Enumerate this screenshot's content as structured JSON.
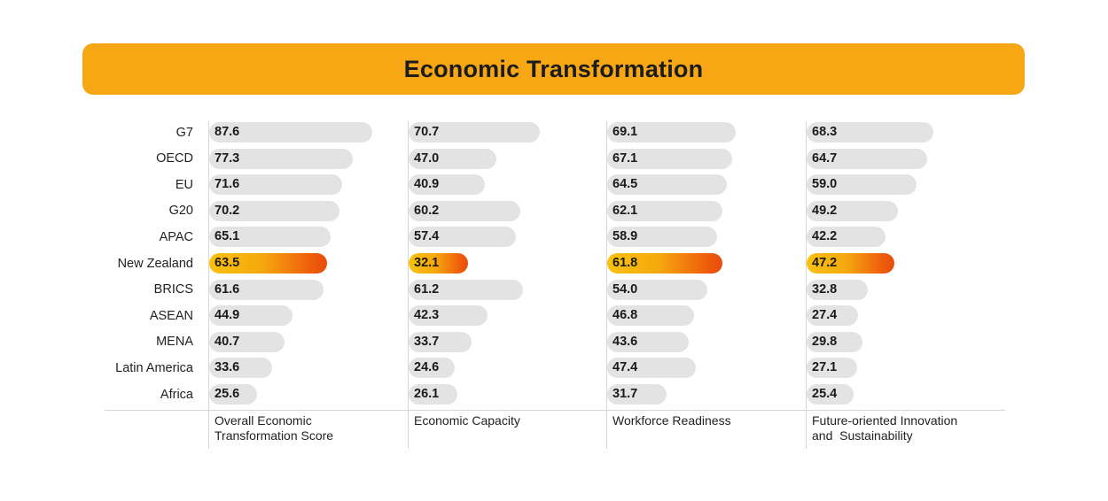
{
  "title": "Economic Transformation",
  "colors": {
    "banner": "#f7a614",
    "bar_default": "#e4e3e3",
    "highlight_start": "#f9c20d",
    "highlight_end": "#e84c0c"
  },
  "chart_data": {
    "type": "bar",
    "orientation": "horizontal",
    "title": "Economic Transformation",
    "categories": [
      "G7",
      "OECD",
      "EU",
      "G20",
      "APAC",
      "New Zealand",
      "BRICS",
      "ASEAN",
      "MENA",
      "Latin America",
      "Africa"
    ],
    "highlight_category": "New Zealand",
    "xlim": [
      0,
      100
    ],
    "series": [
      {
        "name": "Overall Economic Transformation Score",
        "label_lines": [
          "Overall Economic",
          "Transformation Score"
        ],
        "values": [
          87.6,
          77.3,
          71.6,
          70.2,
          65.1,
          63.5,
          61.6,
          44.9,
          40.7,
          33.6,
          25.6
        ]
      },
      {
        "name": "Economic Capacity",
        "label_lines": [
          "Economic Capacity"
        ],
        "values": [
          70.7,
          47.0,
          40.9,
          60.2,
          57.4,
          32.1,
          61.2,
          42.3,
          33.7,
          24.6,
          26.1
        ]
      },
      {
        "name": "Workforce Readiness",
        "label_lines": [
          "Workforce Readiness"
        ],
        "values": [
          69.1,
          67.1,
          64.5,
          62.1,
          58.9,
          61.8,
          54.0,
          46.8,
          43.6,
          47.4,
          31.7
        ]
      },
      {
        "name": "Future-oriented Innovation and Sustainability",
        "label_lines": [
          "Future-oriented Innovation",
          "and  Sustainability"
        ],
        "values": [
          68.3,
          64.7,
          59.0,
          49.2,
          42.2,
          47.2,
          32.8,
          27.4,
          29.8,
          27.1,
          25.4
        ]
      }
    ]
  }
}
